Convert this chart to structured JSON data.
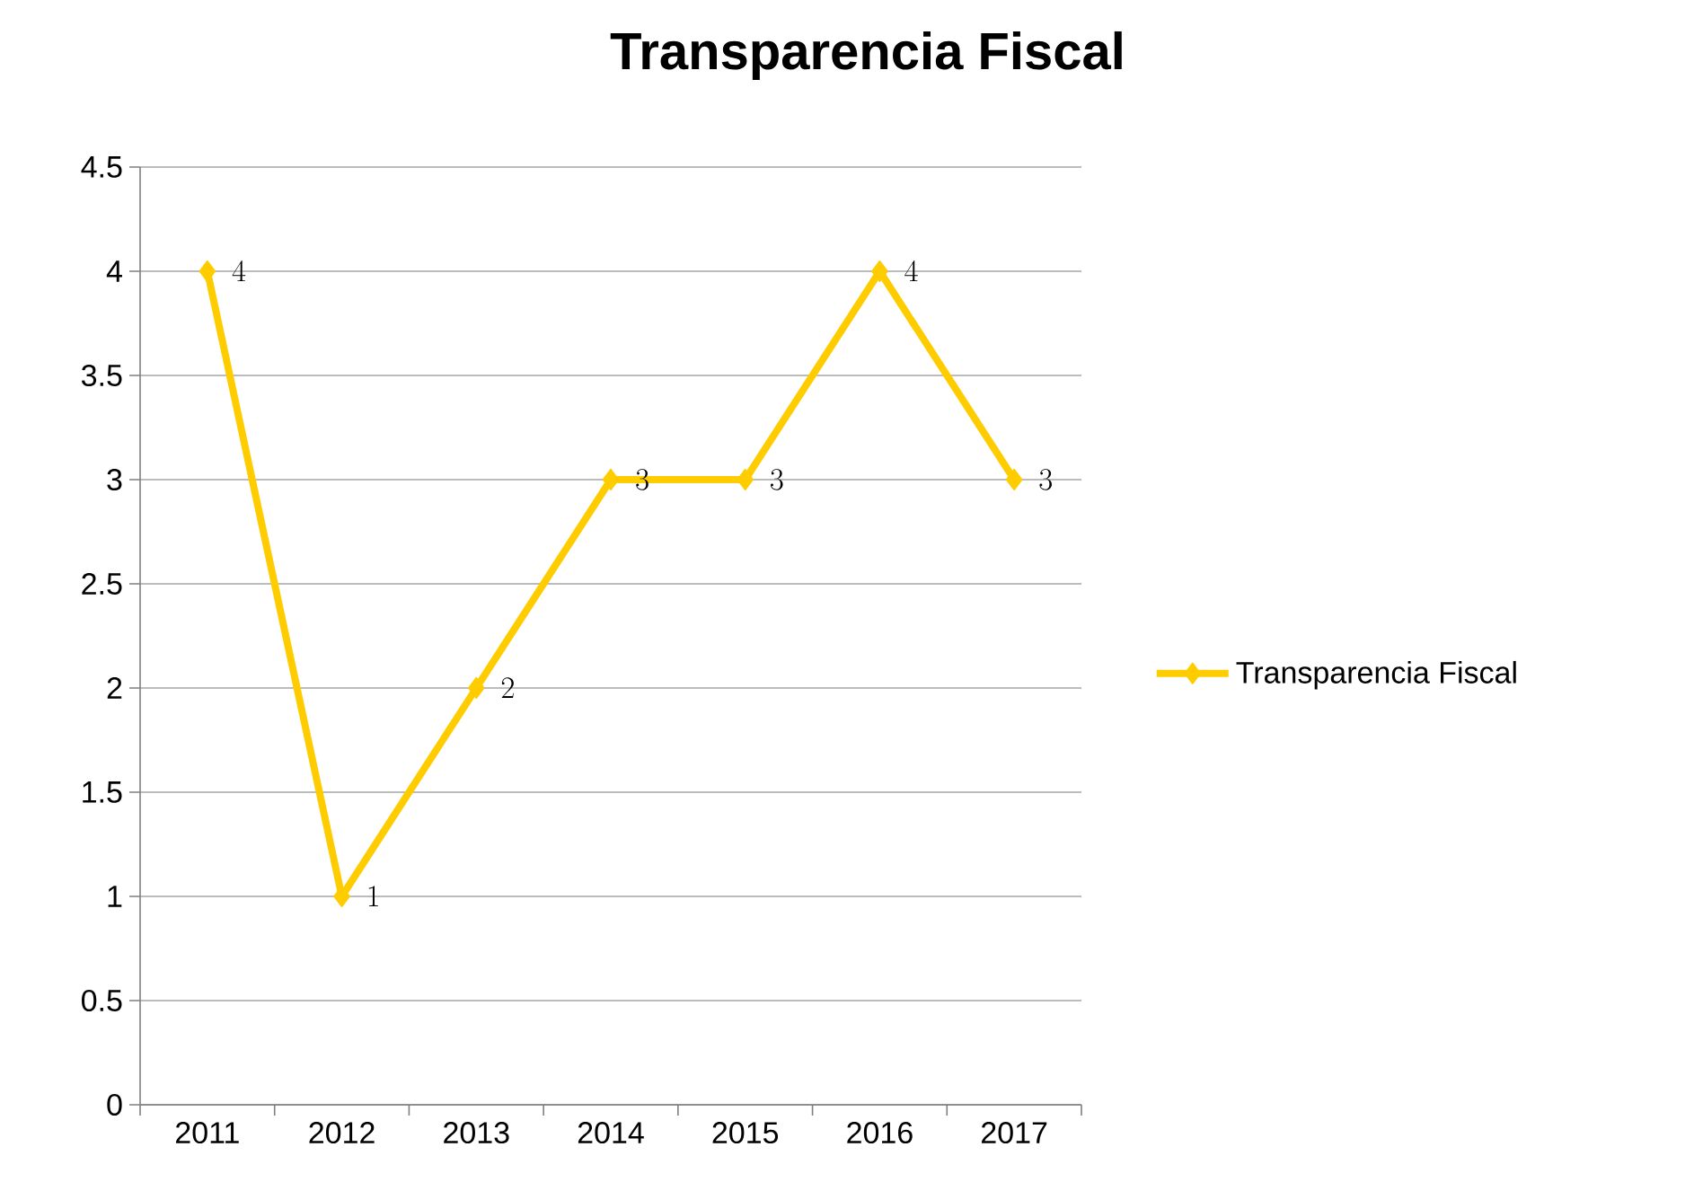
{
  "chart_data": {
    "type": "line",
    "title": "Transparencia Fiscal",
    "categories": [
      "2011",
      "2012",
      "2013",
      "2014",
      "2015",
      "2016",
      "2017"
    ],
    "series": [
      {
        "name": "Transparencia Fiscal",
        "color": "#ffcc00",
        "values": [
          4,
          1,
          2,
          3,
          3,
          4,
          3
        ]
      }
    ],
    "ylim": [
      0,
      4.5
    ],
    "yticks": [
      0,
      0.5,
      1,
      1.5,
      2,
      2.5,
      3,
      3.5,
      4,
      4.5
    ],
    "grid": "y",
    "legend": "right",
    "marker": "diamond",
    "line_style": "solid",
    "data_labels": true
  }
}
